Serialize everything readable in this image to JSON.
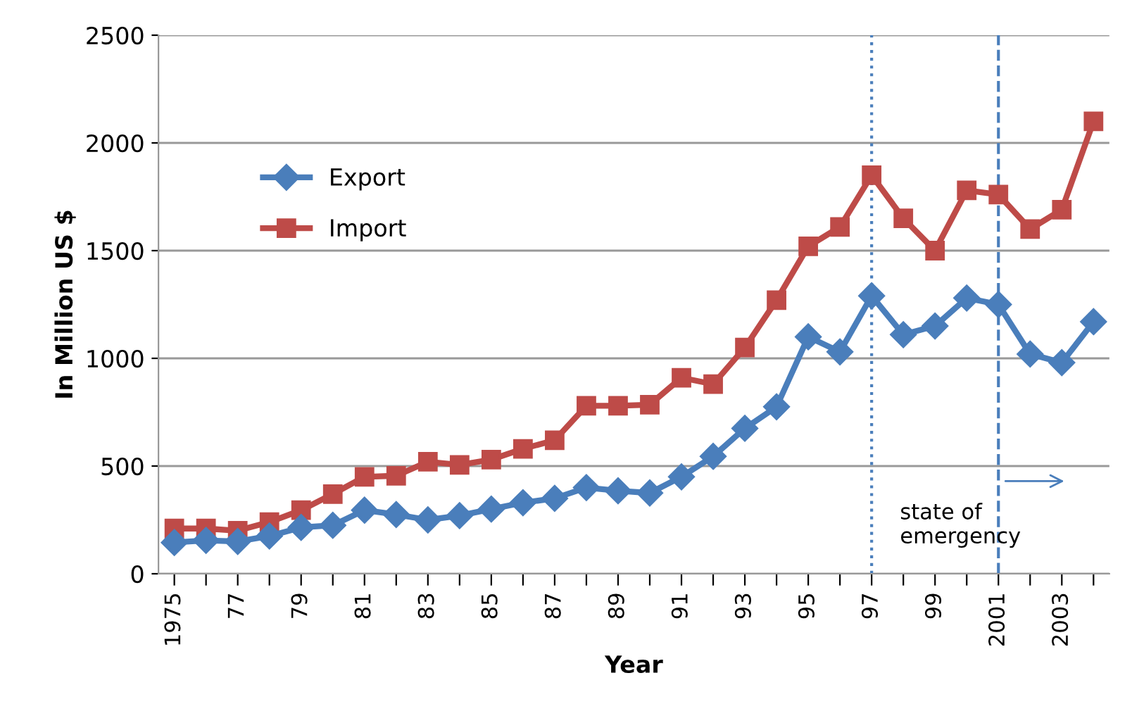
{
  "chart_data": {
    "type": "line",
    "xlabel": "Year",
    "ylabel": "In Million US $",
    "categories": [
      "1975",
      null,
      "77",
      null,
      "79",
      null,
      "81",
      null,
      "83",
      null,
      "85",
      null,
      "87",
      null,
      "89",
      null,
      "91",
      null,
      "93",
      null,
      "95",
      null,
      "97",
      null,
      "99",
      null,
      "2001",
      null,
      "2003",
      null
    ],
    "series": [
      {
        "name": "Export",
        "color": "#4a7ebb",
        "marker": "diamond",
        "values": [
          145,
          155,
          150,
          175,
          215,
          225,
          295,
          275,
          250,
          270,
          300,
          330,
          350,
          400,
          385,
          375,
          450,
          545,
          675,
          775,
          1100,
          1030,
          1290,
          1110,
          1150,
          1280,
          1250,
          1020,
          980,
          1170
        ]
      },
      {
        "name": "Import",
        "color": "#be4b48",
        "marker": "square",
        "values": [
          210,
          210,
          200,
          240,
          295,
          370,
          450,
          455,
          520,
          505,
          530,
          580,
          620,
          780,
          780,
          785,
          910,
          880,
          1050,
          1270,
          1520,
          1610,
          1850,
          1650,
          1500,
          1780,
          1760,
          1600,
          1690,
          2100
        ]
      }
    ],
    "ylim": [
      0,
      2500
    ],
    "yticks": [
      0,
      500,
      1000,
      1500,
      2000,
      2500
    ],
    "grid": "y",
    "legend": "top left",
    "line_style": "solid",
    "ref_lines": [
      {
        "axis": "x",
        "value": "97",
        "label": null,
        "line_style": "dotted",
        "color": "#4a7ebb"
      },
      {
        "axis": "x",
        "value": "2001",
        "label": "state of emergency",
        "line_style": "dashed",
        "color": "#4a7ebb"
      }
    ]
  }
}
